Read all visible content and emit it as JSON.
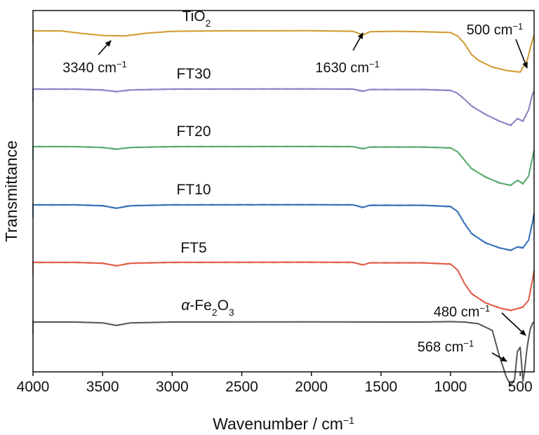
{
  "chart_data": {
    "type": "line",
    "xlabel": "Wavenumber / cm",
    "xlabel_sup": "−1",
    "ylabel": "Transmittance",
    "xlim": [
      4000,
      400
    ],
    "x_reversed": true,
    "y_ticks": false,
    "grid": false,
    "x_ticks": [
      4000,
      3500,
      3000,
      2500,
      2000,
      1500,
      1000,
      500
    ],
    "x_tick_labels": [
      "4000",
      "3500",
      "3000",
      "2500",
      "2000",
      "1500",
      "1000",
      "500"
    ],
    "series": [
      {
        "name": "TiO2",
        "label": {
          "main": "TiO",
          "sub": "2"
        },
        "color": "#D19A2E",
        "points": [
          [
            4000,
            0.0
          ],
          [
            3800,
            0.0
          ],
          [
            3650,
            0.3
          ],
          [
            3500,
            0.55
          ],
          [
            3340,
            0.6
          ],
          [
            3200,
            0.3
          ],
          [
            3000,
            0.05
          ],
          [
            2700,
            0.0
          ],
          [
            2000,
            -0.02
          ],
          [
            1700,
            0.05
          ],
          [
            1630,
            0.5
          ],
          [
            1580,
            0.1
          ],
          [
            1400,
            0.05
          ],
          [
            1200,
            0.1
          ],
          [
            1000,
            0.2
          ],
          [
            950,
            0.6
          ],
          [
            900,
            1.5
          ],
          [
            850,
            2.8
          ],
          [
            800,
            3.5
          ],
          [
            700,
            4.3
          ],
          [
            600,
            4.7
          ],
          [
            500,
            4.9
          ],
          [
            450,
            3.5
          ],
          [
            410,
            1.0
          ],
          [
            400,
            0.5
          ]
        ]
      },
      {
        "name": "FT30",
        "label": {
          "main": "FT30"
        },
        "color": "#8E7CC3",
        "points": [
          [
            4000,
            0.0
          ],
          [
            3700,
            0.0
          ],
          [
            3500,
            0.1
          ],
          [
            3400,
            0.3
          ],
          [
            3300,
            0.1
          ],
          [
            3000,
            0.0
          ],
          [
            2000,
            -0.02
          ],
          [
            1700,
            0.0
          ],
          [
            1630,
            0.25
          ],
          [
            1580,
            0.05
          ],
          [
            1200,
            0.05
          ],
          [
            1000,
            0.15
          ],
          [
            950,
            0.5
          ],
          [
            900,
            1.2
          ],
          [
            850,
            2.0
          ],
          [
            750,
            3.0
          ],
          [
            650,
            3.8
          ],
          [
            568,
            4.3
          ],
          [
            520,
            3.5
          ],
          [
            480,
            3.8
          ],
          [
            440,
            2.5
          ],
          [
            410,
            0.5
          ],
          [
            400,
            0.3
          ]
        ]
      },
      {
        "name": "FT20",
        "label": {
          "main": "FT20"
        },
        "color": "#52A96A",
        "points": [
          [
            4000,
            0.0
          ],
          [
            3700,
            0.0
          ],
          [
            3500,
            0.1
          ],
          [
            3400,
            0.3
          ],
          [
            3300,
            0.1
          ],
          [
            3000,
            0.0
          ],
          [
            2000,
            -0.02
          ],
          [
            1700,
            0.0
          ],
          [
            1630,
            0.25
          ],
          [
            1580,
            0.05
          ],
          [
            1200,
            0.05
          ],
          [
            1000,
            0.15
          ],
          [
            950,
            0.6
          ],
          [
            900,
            1.6
          ],
          [
            850,
            2.6
          ],
          [
            750,
            3.6
          ],
          [
            650,
            4.3
          ],
          [
            568,
            4.6
          ],
          [
            520,
            4.0
          ],
          [
            480,
            4.4
          ],
          [
            440,
            3.5
          ],
          [
            410,
            1.2
          ],
          [
            400,
            0.5
          ]
        ]
      },
      {
        "name": "FT10",
        "label": {
          "main": "FT10"
        },
        "color": "#2E6DB4",
        "points": [
          [
            4000,
            0.0
          ],
          [
            3700,
            0.0
          ],
          [
            3500,
            0.1
          ],
          [
            3400,
            0.4
          ],
          [
            3300,
            0.1
          ],
          [
            3000,
            0.0
          ],
          [
            2000,
            -0.02
          ],
          [
            1700,
            0.0
          ],
          [
            1630,
            0.3
          ],
          [
            1580,
            0.05
          ],
          [
            1200,
            0.05
          ],
          [
            1000,
            0.2
          ],
          [
            950,
            0.8
          ],
          [
            900,
            2.2
          ],
          [
            850,
            3.4
          ],
          [
            750,
            4.5
          ],
          [
            650,
            5.1
          ],
          [
            568,
            5.4
          ],
          [
            520,
            5.0
          ],
          [
            480,
            5.1
          ],
          [
            440,
            4.2
          ],
          [
            410,
            2.0
          ],
          [
            400,
            1.0
          ]
        ]
      },
      {
        "name": "FT5",
        "label": {
          "main": "FT5"
        },
        "color": "#E05A44",
        "points": [
          [
            4000,
            0.0
          ],
          [
            3700,
            0.0
          ],
          [
            3500,
            0.1
          ],
          [
            3400,
            0.4
          ],
          [
            3300,
            0.1
          ],
          [
            3000,
            0.0
          ],
          [
            2000,
            -0.02
          ],
          [
            1700,
            0.0
          ],
          [
            1630,
            0.3
          ],
          [
            1580,
            0.05
          ],
          [
            1200,
            0.05
          ],
          [
            1000,
            0.2
          ],
          [
            950,
            0.9
          ],
          [
            900,
            2.5
          ],
          [
            850,
            3.7
          ],
          [
            750,
            4.8
          ],
          [
            650,
            5.4
          ],
          [
            568,
            5.7
          ],
          [
            520,
            5.5
          ],
          [
            480,
            5.3
          ],
          [
            440,
            4.5
          ],
          [
            410,
            2.0
          ],
          [
            400,
            1.0
          ]
        ]
      },
      {
        "name": "α-Fe2O3",
        "label": {
          "pre": "α",
          "main": "-Fe",
          "sub1": "2",
          "mid": "O",
          "sub2": "3"
        },
        "color": "#555555",
        "points": [
          [
            4000,
            0.0
          ],
          [
            3700,
            0.0
          ],
          [
            3500,
            0.1
          ],
          [
            3400,
            0.4
          ],
          [
            3300,
            0.1
          ],
          [
            3000,
            0.0
          ],
          [
            2000,
            -0.02
          ],
          [
            1500,
            0.0
          ],
          [
            1200,
            0.0
          ],
          [
            1000,
            -0.05
          ],
          [
            900,
            0.0
          ],
          [
            800,
            0.2
          ],
          [
            700,
            1.0
          ],
          [
            650,
            4.0
          ],
          [
            600,
            6.5
          ],
          [
            568,
            7.5
          ],
          [
            540,
            6.8
          ],
          [
            520,
            3.5
          ],
          [
            500,
            3.0
          ],
          [
            480,
            7.0
          ],
          [
            470,
            6.0
          ],
          [
            450,
            3.0
          ],
          [
            430,
            1.0
          ],
          [
            410,
            0.1
          ],
          [
            400,
            0.0
          ]
        ]
      }
    ],
    "annotations": [
      {
        "text": "3340 cm",
        "sup": "−1",
        "series": "TiO2",
        "x": 3340
      },
      {
        "text": "1630 cm",
        "sup": "−1",
        "series": "TiO2",
        "x": 1630
      },
      {
        "text": "500 cm",
        "sup": "−1",
        "series": "TiO2",
        "x": 500
      },
      {
        "text": "480 cm",
        "sup": "−1",
        "series": "α-Fe2O3",
        "x": 480
      },
      {
        "text": "568 cm",
        "sup": "−1",
        "series": "α-Fe2O3",
        "x": 568
      }
    ]
  }
}
